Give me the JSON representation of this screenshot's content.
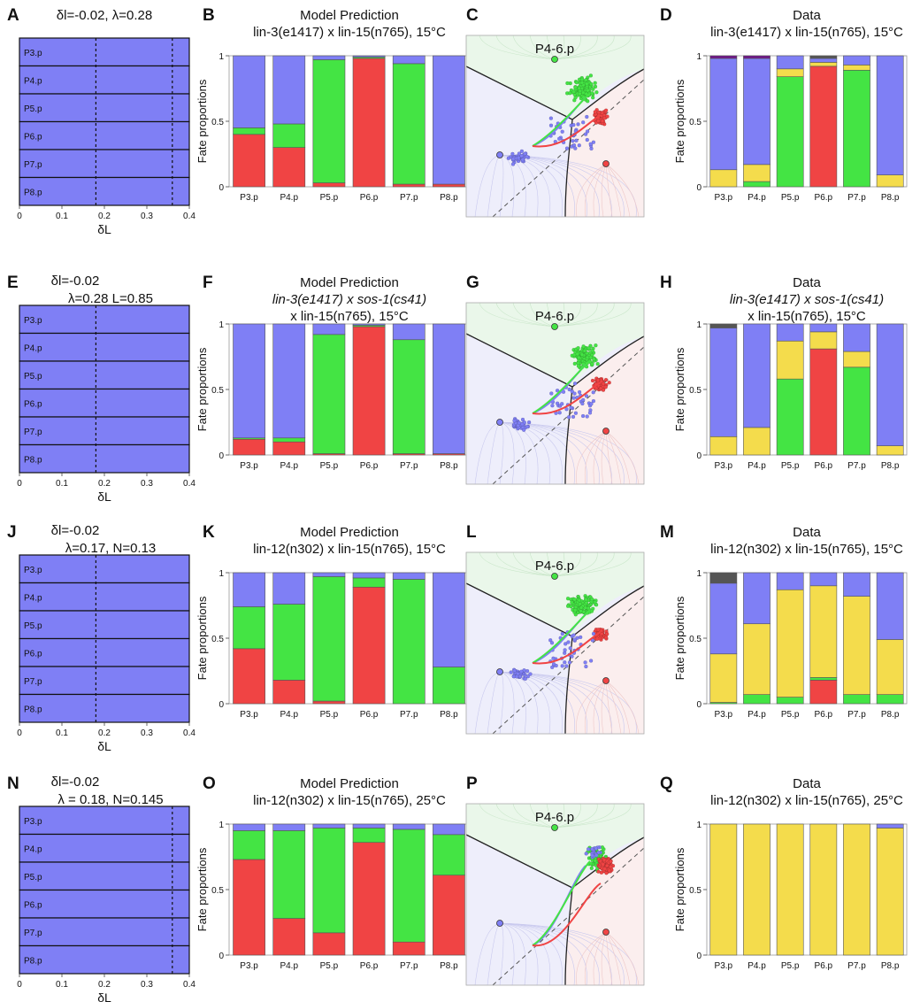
{
  "rows": [
    {
      "stack": {
        "panel_label": "A",
        "params": [
          "δl=-0.02, λ=0.28"
        ],
        "dashed_x": [
          0.18,
          0.36
        ],
        "xlabel": "δL",
        "xticks": [
          "0",
          "0.1",
          "0.2",
          "0.3",
          "0.4"
        ],
        "cells": [
          "P3.p",
          "P4.p",
          "P5.p",
          "P6.p",
          "P7.p",
          "P8.p"
        ]
      },
      "model": {
        "panel_label": "B",
        "title": [
          "Model Prediction",
          "lin-3(e1417) x lin-15(n765), 15°C"
        ]
      },
      "landscape": {
        "panel_label": "C",
        "title": "P4-6.p",
        "variant": 0
      },
      "data": {
        "panel_label": "D",
        "title": [
          "Data",
          "lin-3(e1417) x lin-15(n765), 15°C"
        ]
      }
    },
    {
      "stack": {
        "panel_label": "E",
        "params": [
          "δl=-0.02",
          "λ=0.28        L=0.85"
        ],
        "dashed_x": [
          0.18
        ],
        "xlabel": "δL",
        "xticks": [
          "0",
          "0.1",
          "0.2",
          "0.3",
          "0.4"
        ],
        "cells": [
          "P3.p",
          "P4.p",
          "P5.p",
          "P6.p",
          "P7.p",
          "P8.p"
        ]
      },
      "model": {
        "panel_label": "F",
        "title": [
          "Model Prediction",
          "lin-3(e1417) x sos-1(cs41)",
          "x lin-15(n765), 15°C"
        ]
      },
      "landscape": {
        "panel_label": "G",
        "title": "P4-6.p",
        "variant": 0
      },
      "data": {
        "panel_label": "H",
        "title": [
          "Data",
          "lin-3(e1417) x sos-1(cs41)",
          "x lin-15(n765), 15°C"
        ]
      }
    },
    {
      "stack": {
        "panel_label": "J",
        "params": [
          "δl=-0.02",
          "λ=0.17, N=0.13"
        ],
        "dashed_x": [
          0.18
        ],
        "xlabel": "δL",
        "xticks": [
          "0",
          "0.1",
          "0.2",
          "0.3",
          "0.4"
        ],
        "cells": [
          "P3.p",
          "P4.p",
          "P5.p",
          "P6.p",
          "P7.p",
          "P8.p"
        ]
      },
      "model": {
        "panel_label": "K",
        "title": [
          "Model Prediction",
          "lin-12(n302) x lin-15(n765), 15°C"
        ]
      },
      "landscape": {
        "panel_label": "L",
        "title": "P4-6.p",
        "variant": 0
      },
      "data": {
        "panel_label": "M",
        "title": [
          "Data",
          "lin-12(n302) x lin-15(n765), 15°C"
        ]
      }
    },
    {
      "stack": {
        "panel_label": "N",
        "params": [
          "δl=-0.02",
          "λ = 0.18, N=0.145"
        ],
        "dashed_x": [
          0.36
        ],
        "xlabel": "δL",
        "xticks": [
          "0",
          "0.1",
          "0.2",
          "0.3",
          "0.4"
        ],
        "cells": [
          "P3.p",
          "P4.p",
          "P5.p",
          "P6.p",
          "P7.p",
          "P8.p"
        ]
      },
      "model": {
        "panel_label": "O",
        "title": [
          "Model Prediction",
          "lin-12(n302) x lin-15(n765), 25°C"
        ]
      },
      "landscape": {
        "panel_label": "P",
        "title": "P4-6.p",
        "variant": 1
      },
      "data": {
        "panel_label": "Q",
        "title": [
          "Data",
          "lin-12(n302) x lin-15(n765), 25°C"
        ]
      }
    }
  ],
  "colors": {
    "blue": "#7f7ff5",
    "green": "#44e444",
    "red": "#f04444",
    "yellow": "#f4dc4c",
    "purple": "#70148a",
    "gray": "#555555",
    "blue_bg": "#eeeefb",
    "green_bg": "#eaf7ea",
    "red_bg": "#fbeeee"
  },
  "chart_data": [
    {
      "type": "bar",
      "stacked": true,
      "panel": "B",
      "ylabel": "Fate proportions",
      "ylim": [
        0,
        1
      ],
      "yticks": [
        "0",
        "0.5",
        "1"
      ],
      "categories": [
        "P3.p",
        "P4.p",
        "P5.p",
        "P6.p",
        "P7.p",
        "P8.p"
      ],
      "series": [
        {
          "color": "red",
          "values": [
            0.4,
            0.3,
            0.03,
            0.98,
            0.02,
            0.02
          ]
        },
        {
          "color": "green",
          "values": [
            0.05,
            0.18,
            0.94,
            0.01,
            0.92,
            0.0
          ]
        },
        {
          "color": "blue",
          "values": [
            0.55,
            0.52,
            0.03,
            0.01,
            0.06,
            0.98
          ]
        }
      ]
    },
    {
      "type": "bar",
      "stacked": true,
      "panel": "D",
      "ylabel": "Fate proportions",
      "ylim": [
        0,
        1
      ],
      "yticks": [
        "0",
        "0.5",
        "1"
      ],
      "categories": [
        "P3.p",
        "P4.p",
        "P5.p",
        "P6.p",
        "P7.p",
        "P8.p"
      ],
      "series": [
        {
          "color": "red",
          "values": [
            0,
            0,
            0,
            0.92,
            0,
            0
          ]
        },
        {
          "color": "green",
          "values": [
            0,
            0.04,
            0.84,
            0,
            0.89,
            0
          ]
        },
        {
          "color": "yellow",
          "values": [
            0.13,
            0.13,
            0.06,
            0.03,
            0.04,
            0.09
          ]
        },
        {
          "color": "blue",
          "values": [
            0.85,
            0.81,
            0.1,
            0.03,
            0.07,
            0.91
          ]
        },
        {
          "color": "purple",
          "values": [
            0.02,
            0.02,
            0,
            0,
            0,
            0
          ]
        },
        {
          "color": "gray",
          "values": [
            0,
            0,
            0,
            0.02,
            0,
            0
          ]
        }
      ]
    },
    {
      "type": "bar",
      "stacked": true,
      "panel": "F",
      "ylabel": "Fate proportions",
      "ylim": [
        0,
        1
      ],
      "yticks": [
        "0",
        "0.5",
        "1"
      ],
      "categories": [
        "P3.p",
        "P4.p",
        "P5.p",
        "P6.p",
        "P7.p",
        "P8.p"
      ],
      "series": [
        {
          "color": "red",
          "values": [
            0.12,
            0.1,
            0.01,
            0.98,
            0.01,
            0.01
          ]
        },
        {
          "color": "green",
          "values": [
            0.01,
            0.03,
            0.91,
            0.01,
            0.87,
            0.0
          ]
        },
        {
          "color": "blue",
          "values": [
            0.87,
            0.87,
            0.08,
            0.01,
            0.12,
            0.99
          ]
        }
      ]
    },
    {
      "type": "bar",
      "stacked": true,
      "panel": "H",
      "ylabel": "Fate proportions",
      "ylim": [
        0,
        1
      ],
      "yticks": [
        "0",
        "0.5",
        "1"
      ],
      "categories": [
        "P3.p",
        "P4.p",
        "P5.p",
        "P6.p",
        "P7.p",
        "P8.p"
      ],
      "series": [
        {
          "color": "red",
          "values": [
            0,
            0,
            0,
            0.81,
            0,
            0
          ]
        },
        {
          "color": "green",
          "values": [
            0,
            0,
            0.58,
            0,
            0.67,
            0
          ]
        },
        {
          "color": "yellow",
          "values": [
            0.14,
            0.21,
            0.29,
            0.13,
            0.12,
            0.07
          ]
        },
        {
          "color": "blue",
          "values": [
            0.83,
            0.79,
            0.13,
            0.06,
            0.21,
            0.93
          ]
        },
        {
          "color": "gray",
          "values": [
            0.03,
            0,
            0,
            0,
            0,
            0
          ]
        }
      ]
    },
    {
      "type": "bar",
      "stacked": true,
      "panel": "K",
      "ylabel": "Fate proportions",
      "ylim": [
        0,
        1
      ],
      "yticks": [
        "0",
        "0.5",
        "1"
      ],
      "categories": [
        "P3.p",
        "P4.p",
        "P5.p",
        "P6.p",
        "P7.p",
        "P8.p"
      ],
      "series": [
        {
          "color": "red",
          "values": [
            0.42,
            0.18,
            0.02,
            0.89,
            0.0,
            0.0
          ]
        },
        {
          "color": "green",
          "values": [
            0.32,
            0.58,
            0.95,
            0.07,
            0.95,
            0.28
          ]
        },
        {
          "color": "blue",
          "values": [
            0.26,
            0.24,
            0.03,
            0.04,
            0.05,
            0.72
          ]
        }
      ]
    },
    {
      "type": "bar",
      "stacked": true,
      "panel": "M",
      "ylabel": "Fate proportions",
      "ylim": [
        0,
        1
      ],
      "yticks": [
        "0",
        "0.5",
        "1"
      ],
      "categories": [
        "P3.p",
        "P4.p",
        "P5.p",
        "P6.p",
        "P7.p",
        "P8.p"
      ],
      "series": [
        {
          "color": "red",
          "values": [
            0,
            0,
            0,
            0.18,
            0,
            0
          ]
        },
        {
          "color": "green",
          "values": [
            0.01,
            0.07,
            0.05,
            0.02,
            0.07,
            0.07
          ]
        },
        {
          "color": "yellow",
          "values": [
            0.37,
            0.54,
            0.82,
            0.7,
            0.75,
            0.42
          ]
        },
        {
          "color": "blue",
          "values": [
            0.54,
            0.39,
            0.13,
            0.1,
            0.18,
            0.51
          ]
        },
        {
          "color": "gray",
          "values": [
            0.08,
            0,
            0,
            0,
            0,
            0
          ]
        }
      ]
    },
    {
      "type": "bar",
      "stacked": true,
      "panel": "O",
      "ylabel": "Fate proportions",
      "ylim": [
        0,
        1
      ],
      "yticks": [
        "0",
        "0.5",
        "1"
      ],
      "categories": [
        "P3.p",
        "P4.p",
        "P5.p",
        "P6.p",
        "P7.p",
        "P8.p"
      ],
      "series": [
        {
          "color": "red",
          "values": [
            0.73,
            0.28,
            0.17,
            0.86,
            0.1,
            0.61
          ]
        },
        {
          "color": "green",
          "values": [
            0.22,
            0.67,
            0.8,
            0.11,
            0.86,
            0.31
          ]
        },
        {
          "color": "blue",
          "values": [
            0.05,
            0.05,
            0.03,
            0.03,
            0.04,
            0.08
          ]
        }
      ]
    },
    {
      "type": "bar",
      "stacked": true,
      "panel": "Q",
      "ylabel": "Fate proportions",
      "ylim": [
        0,
        1
      ],
      "yticks": [
        "0",
        "0.5",
        "1"
      ],
      "categories": [
        "P3.p",
        "P4.p",
        "P5.p",
        "P6.p",
        "P7.p",
        "P8.p"
      ],
      "series": [
        {
          "color": "yellow",
          "values": [
            1.0,
            1.0,
            1.0,
            1.0,
            1.0,
            0.97
          ]
        },
        {
          "color": "blue",
          "values": [
            0,
            0,
            0,
            0,
            0,
            0.03
          ]
        }
      ]
    }
  ]
}
